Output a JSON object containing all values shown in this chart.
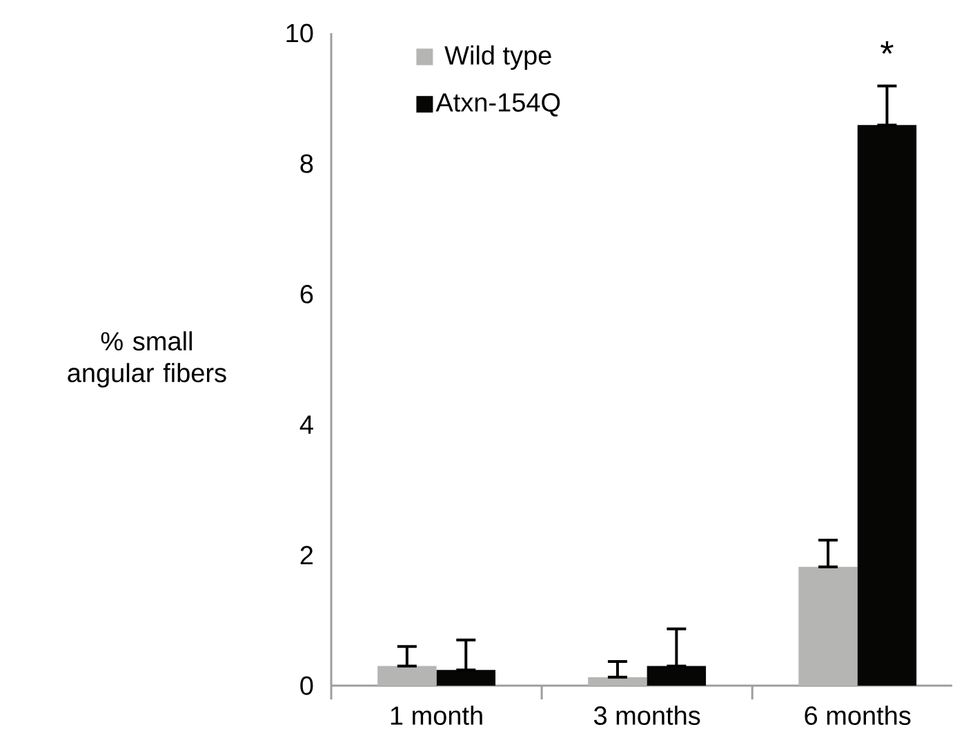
{
  "chart_data": {
    "type": "bar",
    "ylabel": "% small angular fibers",
    "categories": [
      "1 month",
      "3 months",
      "6 months"
    ],
    "series": [
      {
        "name": "Wild type",
        "color": "#b5b5b3",
        "values": [
          0.3,
          0.13,
          1.82
        ],
        "errors": [
          [
            0.3,
            0.6
          ],
          [
            0.13,
            0.37
          ],
          [
            1.82,
            2.23
          ]
        ]
      },
      {
        "name": "Atxn-154Q",
        "color": "#060604",
        "values": [
          0.24,
          0.3,
          8.59
        ],
        "errors": [
          [
            0.24,
            0.7
          ],
          [
            0.3,
            0.87
          ],
          [
            8.59,
            9.19
          ]
        ]
      }
    ],
    "ylim": [
      0,
      10
    ],
    "yticks": [
      0,
      2,
      4,
      6,
      8,
      10
    ],
    "grid": false,
    "legend": "top left",
    "annotations": [
      "*"
    ]
  }
}
